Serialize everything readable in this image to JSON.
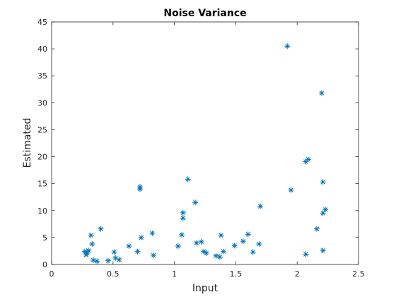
{
  "colors": {
    "marker": "#0072BD",
    "axis": "#262626",
    "background": "#ffffff"
  },
  "chart_data": {
    "type": "scatter",
    "title": "Noise Variance",
    "xlabel": "Input",
    "ylabel": "Estimated",
    "xlim": [
      0,
      2.5
    ],
    "ylim": [
      0,
      45
    ],
    "xticks": [
      0,
      0.5,
      1,
      1.5,
      2,
      2.5
    ],
    "xtick_labels": [
      "0",
      "0.5",
      "1",
      "1.5",
      "2",
      "2.5"
    ],
    "yticks": [
      0,
      5,
      10,
      15,
      20,
      25,
      30,
      35,
      40,
      45
    ],
    "ytick_labels": [
      "0",
      "5",
      "10",
      "15",
      "20",
      "25",
      "30",
      "35",
      "40",
      "45"
    ],
    "grid": false,
    "marker": "asterisk",
    "points": [
      [
        0.27,
        2.4
      ],
      [
        0.28,
        1.8
      ],
      [
        0.29,
        2.1
      ],
      [
        0.3,
        2.6
      ],
      [
        0.32,
        5.4
      ],
      [
        0.33,
        3.8
      ],
      [
        0.34,
        0.8
      ],
      [
        0.37,
        0.6
      ],
      [
        0.4,
        6.6
      ],
      [
        0.46,
        0.7
      ],
      [
        0.51,
        2.3
      ],
      [
        0.52,
        1.2
      ],
      [
        0.55,
        0.9
      ],
      [
        0.63,
        3.4
      ],
      [
        0.7,
        2.4
      ],
      [
        0.72,
        14.4
      ],
      [
        0.72,
        14.0
      ],
      [
        0.73,
        5.0
      ],
      [
        0.82,
        5.8
      ],
      [
        0.83,
        1.7
      ],
      [
        1.03,
        3.4
      ],
      [
        1.06,
        5.5
      ],
      [
        1.07,
        9.6
      ],
      [
        1.07,
        8.6
      ],
      [
        1.11,
        15.8
      ],
      [
        1.17,
        11.5
      ],
      [
        1.18,
        4.0
      ],
      [
        1.22,
        4.2
      ],
      [
        1.24,
        2.4
      ],
      [
        1.26,
        2.1
      ],
      [
        1.34,
        1.6
      ],
      [
        1.37,
        1.4
      ],
      [
        1.38,
        5.4
      ],
      [
        1.4,
        2.4
      ],
      [
        1.49,
        3.5
      ],
      [
        1.56,
        4.3
      ],
      [
        1.6,
        5.6
      ],
      [
        1.64,
        2.3
      ],
      [
        1.69,
        3.8
      ],
      [
        1.7,
        10.8
      ],
      [
        1.92,
        40.5
      ],
      [
        1.95,
        13.8
      ],
      [
        2.07,
        19.1
      ],
      [
        2.09,
        19.5
      ],
      [
        2.07,
        1.9
      ],
      [
        2.16,
        6.6
      ],
      [
        2.2,
        31.8
      ],
      [
        2.21,
        15.3
      ],
      [
        2.21,
        9.5
      ],
      [
        2.23,
        10.2
      ],
      [
        2.21,
        2.6
      ]
    ]
  }
}
